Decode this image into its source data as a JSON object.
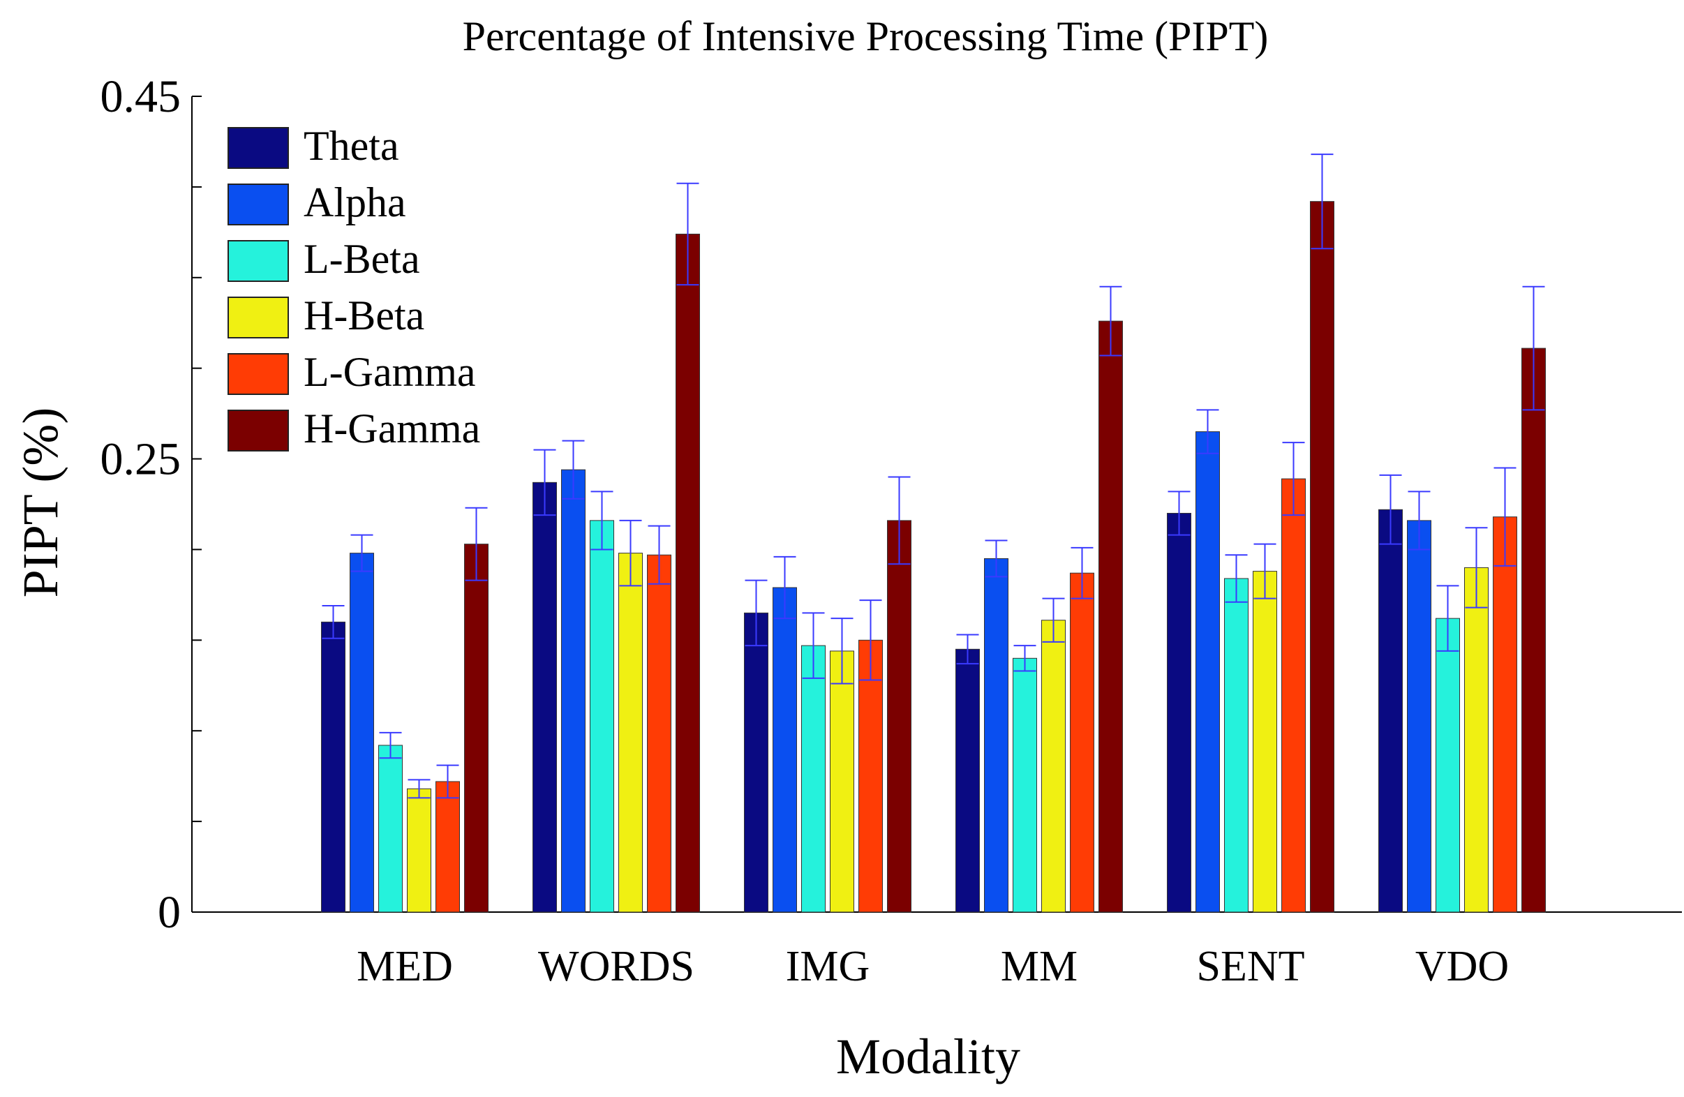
{
  "chart_data": {
    "type": "bar",
    "title": "Percentage of Intensive Processing Time (PIPT)",
    "xlabel": "Modality",
    "ylabel": "PIPT (%)",
    "ylim": [
      0,
      0.45
    ],
    "yticks": [
      0,
      0.25,
      0.45
    ],
    "ytick_labels": [
      "0",
      "0.25",
      "0.45"
    ],
    "grid": false,
    "legend_position": "top-left",
    "categories": [
      "MED",
      "WORDS",
      "IMG",
      "MM",
      "SENT",
      "VDO"
    ],
    "series": [
      {
        "name": "Theta",
        "color": "#0a0a82",
        "values": [
          0.16,
          0.237,
          0.165,
          0.145,
          0.22,
          0.222
        ],
        "errors": [
          0.009,
          0.018,
          0.018,
          0.008,
          0.012,
          0.019
        ]
      },
      {
        "name": "Alpha",
        "color": "#0a4ff0",
        "values": [
          0.198,
          0.244,
          0.179,
          0.195,
          0.265,
          0.216
        ],
        "errors": [
          0.01,
          0.016,
          0.017,
          0.01,
          0.012,
          0.016
        ]
      },
      {
        "name": "L-Beta",
        "color": "#25f2dc",
        "values": [
          0.092,
          0.216,
          0.147,
          0.14,
          0.184,
          0.162
        ],
        "errors": [
          0.007,
          0.016,
          0.018,
          0.007,
          0.013,
          0.018
        ]
      },
      {
        "name": "H-Beta",
        "color": "#f0f012",
        "values": [
          0.068,
          0.198,
          0.144,
          0.161,
          0.188,
          0.19
        ],
        "errors": [
          0.005,
          0.018,
          0.018,
          0.012,
          0.015,
          0.022
        ]
      },
      {
        "name": "L-Gamma",
        "color": "#ff3c05",
        "values": [
          0.072,
          0.197,
          0.15,
          0.187,
          0.239,
          0.218
        ],
        "errors": [
          0.009,
          0.016,
          0.022,
          0.014,
          0.02,
          0.027
        ]
      },
      {
        "name": "H-Gamma",
        "color": "#7b0000",
        "values": [
          0.203,
          0.374,
          0.216,
          0.326,
          0.392,
          0.311
        ],
        "errors": [
          0.02,
          0.028,
          0.024,
          0.019,
          0.026,
          0.034
        ]
      }
    ]
  }
}
